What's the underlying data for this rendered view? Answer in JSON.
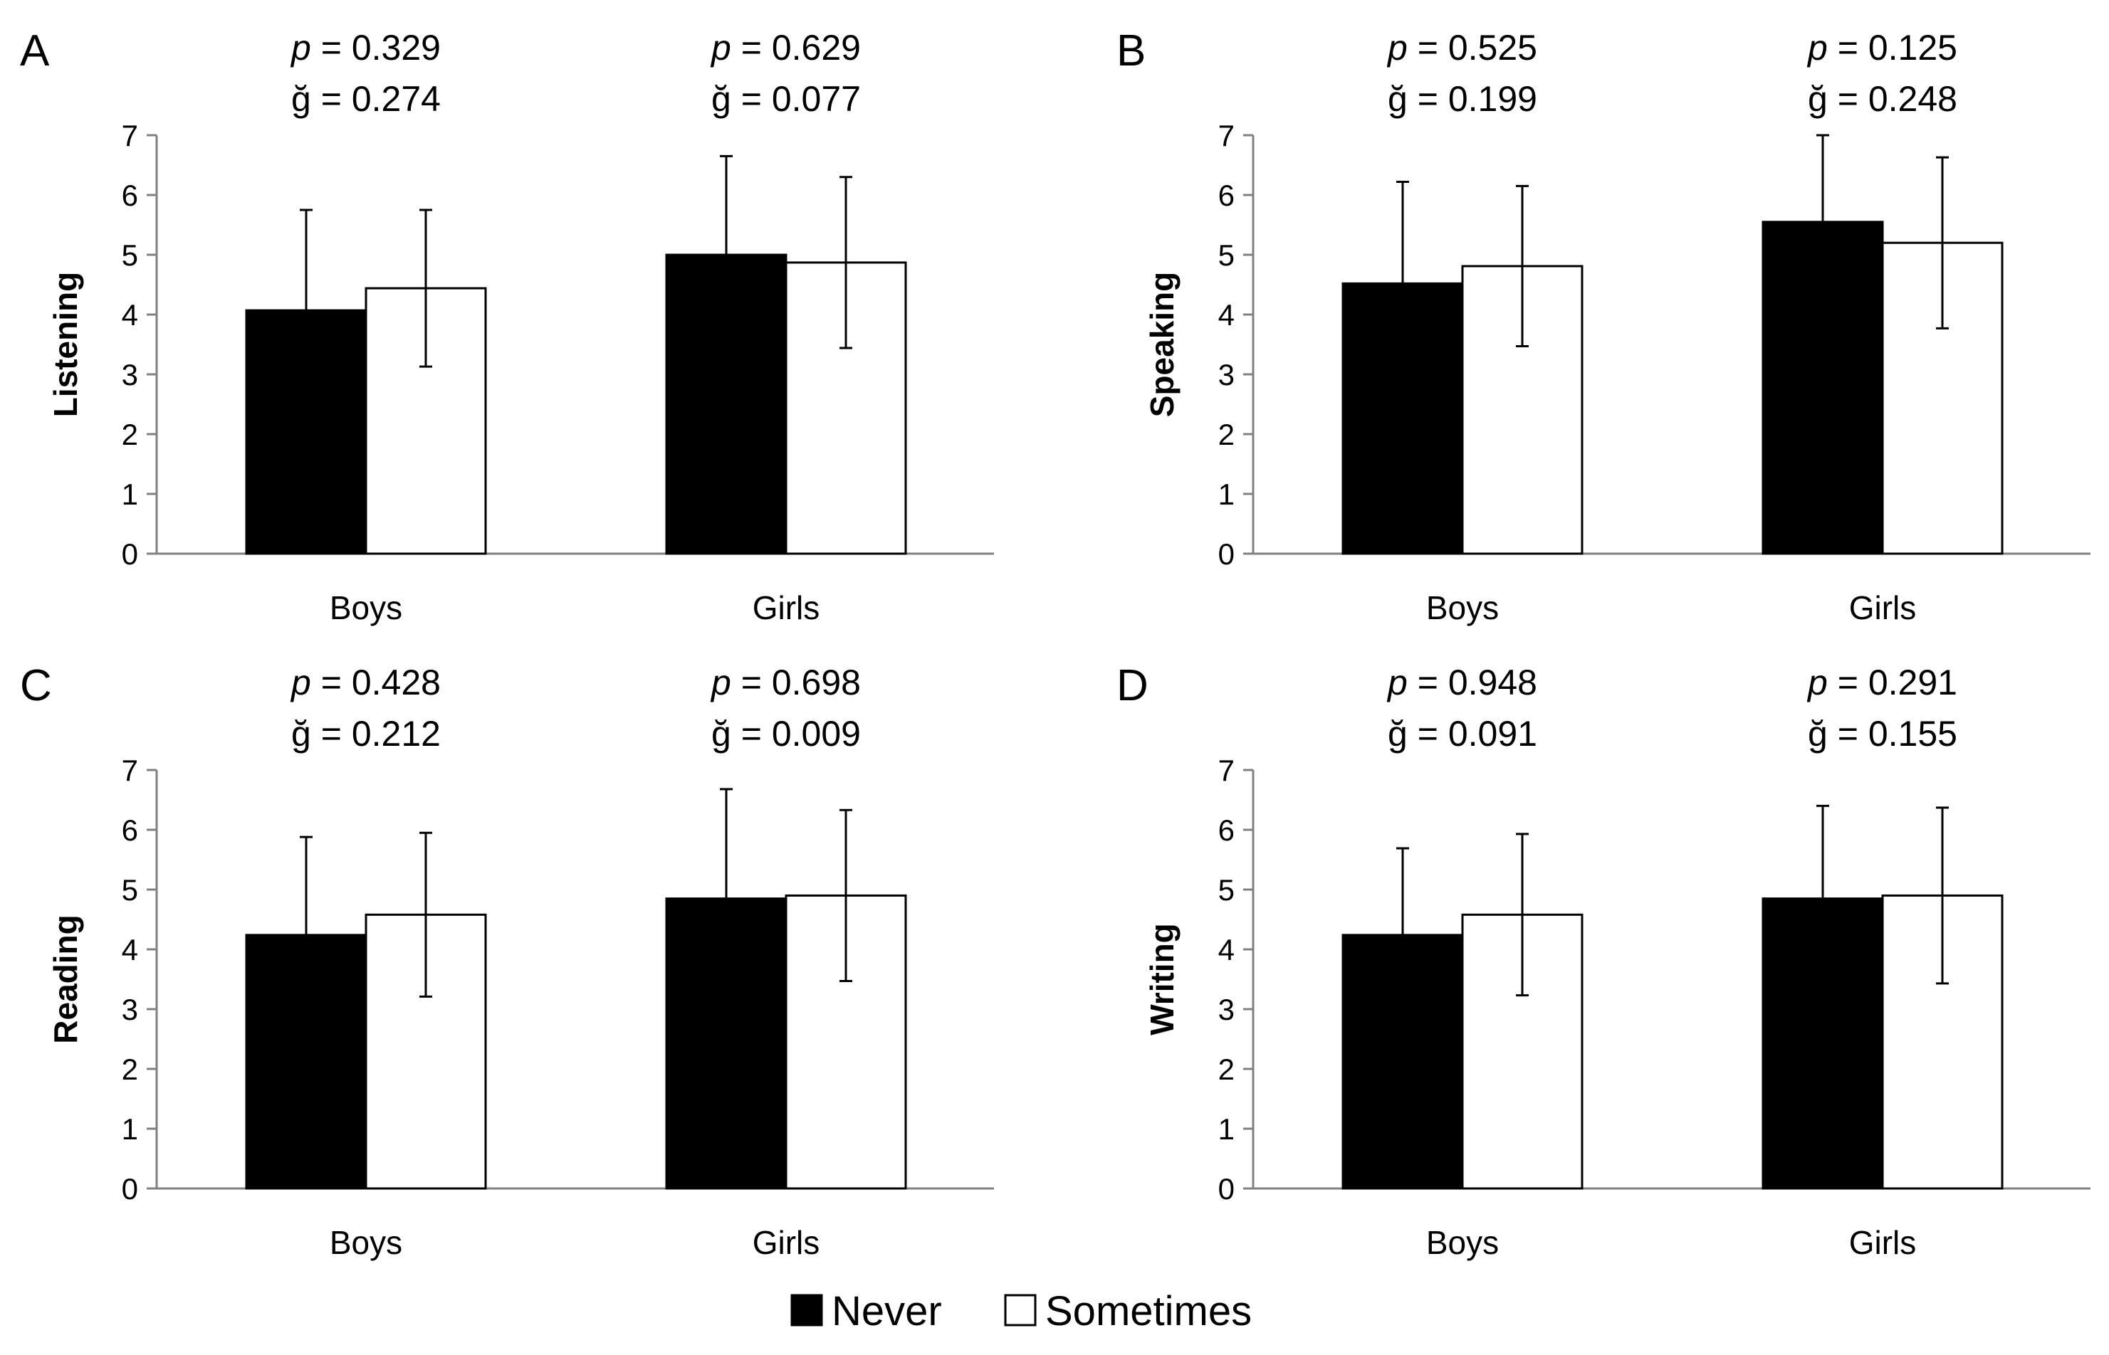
{
  "colors": {
    "never": "#000000",
    "sometimes": "#ffffff",
    "axis": "#808080",
    "error_bar": "#000000"
  },
  "legend": [
    {
      "label": "Never",
      "color": "#000000"
    },
    {
      "label": "Sometimes",
      "color": "#ffffff"
    }
  ],
  "chart_data": [
    {
      "panel": "A",
      "type": "bar",
      "ylabel": "Listening",
      "ylim": [
        0,
        7
      ],
      "yticks": [
        "0",
        "1",
        "2",
        "3",
        "4",
        "5",
        "6",
        "7"
      ],
      "categories": [
        "Boys",
        "Girls"
      ],
      "series": [
        {
          "name": "Never",
          "values": [
            4.07,
            5.0
          ],
          "error": [
            1.68,
            1.65
          ]
        },
        {
          "name": "Sometimes",
          "values": [
            4.44,
            4.87
          ],
          "error": [
            1.31,
            1.43
          ]
        }
      ],
      "stats": [
        {
          "p": "= 0.329",
          "g": "ğ = 0.274"
        },
        {
          "p": "= 0.629",
          "g": "ğ = 0.077"
        }
      ]
    },
    {
      "panel": "B",
      "type": "bar",
      "ylabel": "Speaking",
      "ylim": [
        0,
        7
      ],
      "yticks": [
        "0",
        "1",
        "2",
        "3",
        "4",
        "5",
        "6",
        "7"
      ],
      "categories": [
        "Boys",
        "Girls"
      ],
      "series": [
        {
          "name": "Never",
          "values": [
            4.52,
            5.55
          ],
          "error": [
            1.7,
            1.45
          ]
        },
        {
          "name": "Sometimes",
          "values": [
            4.81,
            5.2
          ],
          "error": [
            1.34,
            1.43
          ]
        }
      ],
      "stats": [
        {
          "p": "= 0.525",
          "g": "ğ = 0.199"
        },
        {
          "p": "= 0.125",
          "g": "ğ = 0.248"
        }
      ]
    },
    {
      "panel": "C",
      "type": "bar",
      "ylabel": "Reading",
      "ylim": [
        0,
        7
      ],
      "yticks": [
        "0",
        "1",
        "2",
        "3",
        "4",
        "5",
        "6",
        "7"
      ],
      "categories": [
        "Boys",
        "Girls"
      ],
      "series": [
        {
          "name": "Never",
          "values": [
            4.24,
            4.85
          ],
          "error": [
            1.64,
            1.83
          ]
        },
        {
          "name": "Sometimes",
          "values": [
            4.58,
            4.9
          ],
          "error": [
            1.37,
            1.43
          ]
        }
      ],
      "stats": [
        {
          "p": "= 0.428",
          "g": "ğ = 0.212"
        },
        {
          "p": "= 0.698",
          "g": "ğ = 0.009"
        }
      ]
    },
    {
      "panel": "D",
      "type": "bar",
      "ylabel": "Writing",
      "ylim": [
        0,
        7
      ],
      "yticks": [
        "0",
        "1",
        "2",
        "3",
        "4",
        "5",
        "6",
        "7"
      ],
      "categories": [
        "Boys",
        "Girls"
      ],
      "series": [
        {
          "name": "Never",
          "values": [
            4.24,
            4.85
          ],
          "error": [
            1.45,
            1.55
          ]
        },
        {
          "name": "Sometimes",
          "values": [
            4.58,
            4.9
          ],
          "error": [
            1.35,
            1.47
          ]
        }
      ],
      "stats": [
        {
          "p": "= 0.948",
          "g": "ğ = 0.091"
        },
        {
          "p": "= 0.291",
          "g": "ğ = 0.155"
        }
      ]
    }
  ]
}
